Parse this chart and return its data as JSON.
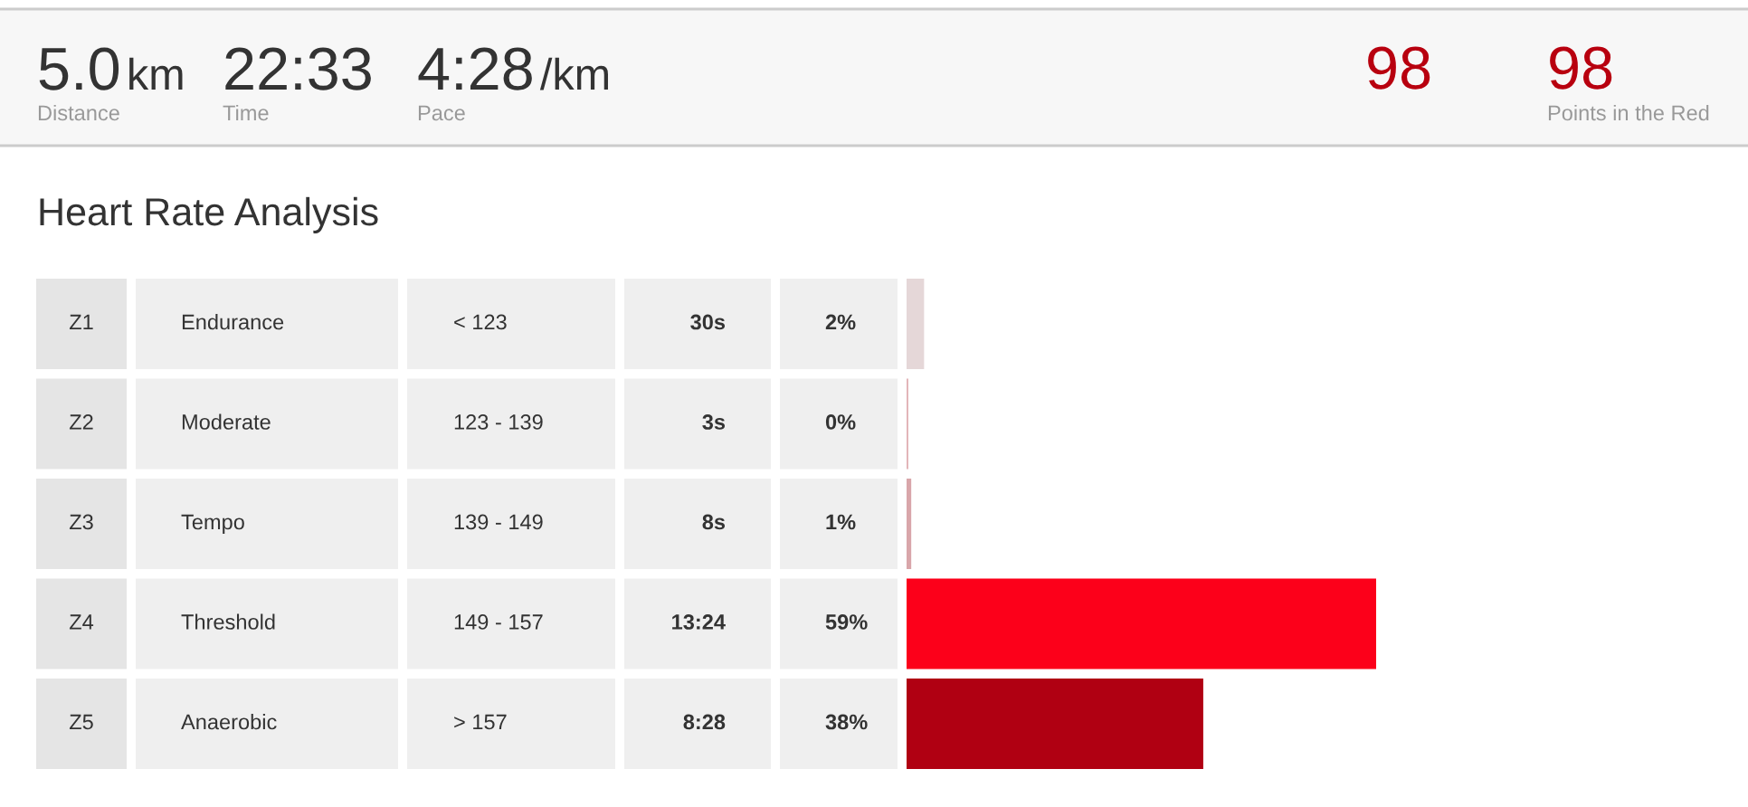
{
  "chart_data": [
    {
      "type": "other",
      "annotations": [
        "5.0",
        "km",
        "Distance",
        "22:33",
        "Time",
        "4:28",
        "/km",
        "Pace",
        "98",
        "98",
        "Points in the Red"
      ]
    },
    {
      "type": "bar",
      "orientation": "horizontal",
      "title": "Heart Rate Analysis",
      "tick_labels": "y",
      "categories": [
        "Z1",
        "Z2",
        "Z3",
        "Z4",
        "Z5"
      ],
      "values": [
        30,
        3,
        8,
        804,
        508
      ],
      "colors": [
        "#e5d7d8",
        "#e2b3b7",
        "#d9a6aa",
        "#fc001a",
        "#b00012"
      ],
      "value_labels": [
        "30s",
        "3s",
        "8s",
        "13:24",
        "8:28"
      ],
      "annotations": [
        "Endurance",
        "< 123",
        "2%",
        "Moderate",
        "123 - 139",
        "0%",
        "Tempo",
        "139 - 149",
        "1%",
        "Threshold",
        "149 - 157",
        "59%",
        "Anaerobic",
        "> 157",
        "38%"
      ]
    }
  ]
}
